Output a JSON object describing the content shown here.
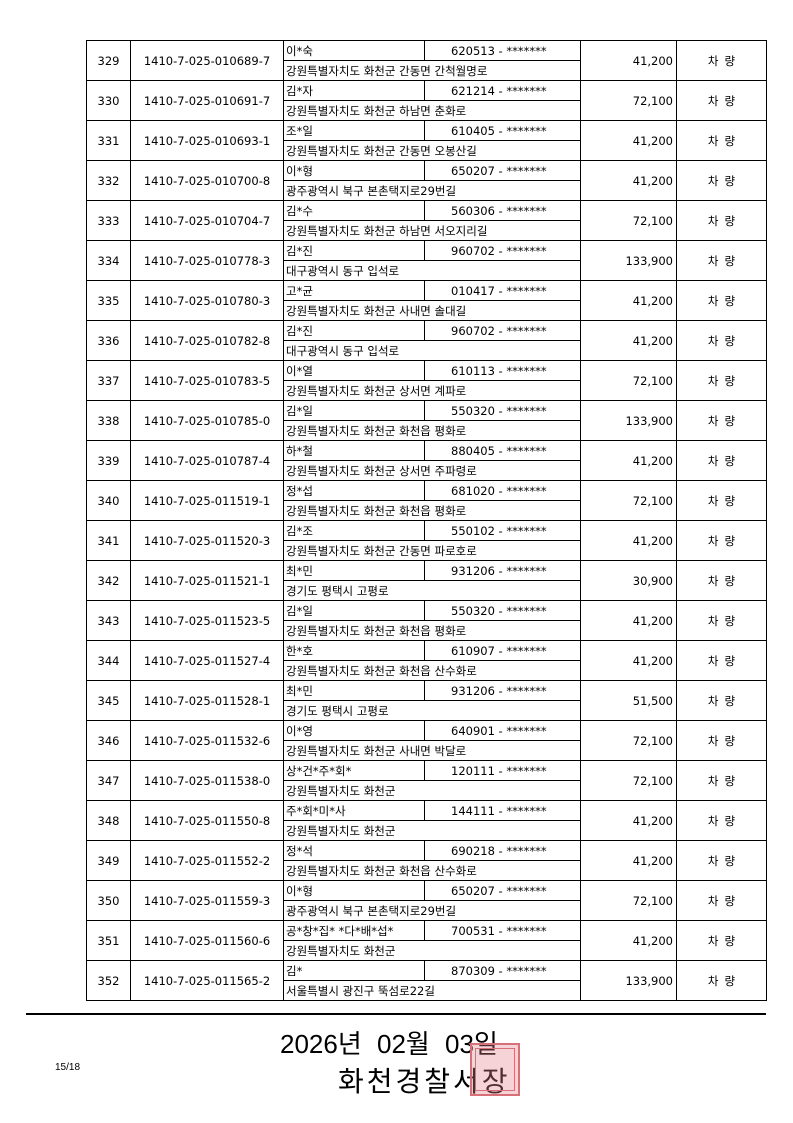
{
  "rows": [
    {
      "no": "329",
      "account": "1410-7-025-010689-7",
      "name": "이*숙",
      "id": "620513 - *******",
      "address": "강원특별자치도 화천군 간동면 간척월명로",
      "amount": "41,200",
      "type": "차량"
    },
    {
      "no": "330",
      "account": "1410-7-025-010691-7",
      "name": "김*자",
      "id": "621214 - *******",
      "address": "강원특별자치도 화천군 하남면 춘화로",
      "amount": "72,100",
      "type": "차량"
    },
    {
      "no": "331",
      "account": "1410-7-025-010693-1",
      "name": "조*일",
      "id": "610405 - *******",
      "address": "강원특별자치도 화천군 간동면 오봉산길",
      "amount": "41,200",
      "type": "차량"
    },
    {
      "no": "332",
      "account": "1410-7-025-010700-8",
      "name": "이*형",
      "id": "650207 - *******",
      "address": "광주광역시 북구 본촌택지로29번길",
      "amount": "41,200",
      "type": "차량"
    },
    {
      "no": "333",
      "account": "1410-7-025-010704-7",
      "name": "김*수",
      "id": "560306 - *******",
      "address": "강원특별자치도 화천군 하남면 서오지리길",
      "amount": "72,100",
      "type": "차량"
    },
    {
      "no": "334",
      "account": "1410-7-025-010778-3",
      "name": "김*진",
      "id": "960702 - *******",
      "address": "대구광역시 동구 입석로",
      "amount": "133,900",
      "type": "차량"
    },
    {
      "no": "335",
      "account": "1410-7-025-010780-3",
      "name": "고*균",
      "id": "010417 - *******",
      "address": "강원특별자치도 화천군 사내면 솔대길",
      "amount": "41,200",
      "type": "차량"
    },
    {
      "no": "336",
      "account": "1410-7-025-010782-8",
      "name": "김*진",
      "id": "960702 - *******",
      "address": "대구광역시 동구 입석로",
      "amount": "41,200",
      "type": "차량"
    },
    {
      "no": "337",
      "account": "1410-7-025-010783-5",
      "name": "이*열",
      "id": "610113 - *******",
      "address": "강원특별자치도 화천군 상서면 계파로",
      "amount": "72,100",
      "type": "차량"
    },
    {
      "no": "338",
      "account": "1410-7-025-010785-0",
      "name": "김*일",
      "id": "550320 - *******",
      "address": "강원특별자치도 화천군 화천읍 평화로",
      "amount": "133,900",
      "type": "차량"
    },
    {
      "no": "339",
      "account": "1410-7-025-010787-4",
      "name": "하*철",
      "id": "880405 - *******",
      "address": "강원특별자치도 화천군 상서면 주파령로",
      "amount": "41,200",
      "type": "차량"
    },
    {
      "no": "340",
      "account": "1410-7-025-011519-1",
      "name": "정*섭",
      "id": "681020 - *******",
      "address": "강원특별자치도 화천군 화천읍 평화로",
      "amount": "72,100",
      "type": "차량"
    },
    {
      "no": "341",
      "account": "1410-7-025-011520-3",
      "name": "김*조",
      "id": "550102 - *******",
      "address": "강원특별자치도 화천군 간동면 파로호로",
      "amount": "41,200",
      "type": "차량"
    },
    {
      "no": "342",
      "account": "1410-7-025-011521-1",
      "name": "최*민",
      "id": "931206 - *******",
      "address": "경기도 평택시 고평로",
      "amount": "30,900",
      "type": "차량"
    },
    {
      "no": "343",
      "account": "1410-7-025-011523-5",
      "name": "김*일",
      "id": "550320 - *******",
      "address": "강원특별자치도 화천군 화천읍 평화로",
      "amount": "41,200",
      "type": "차량"
    },
    {
      "no": "344",
      "account": "1410-7-025-011527-4",
      "name": "한*호",
      "id": "610907 - *******",
      "address": "강원특별자치도 화천군 화천읍 산수화로",
      "amount": "41,200",
      "type": "차량"
    },
    {
      "no": "345",
      "account": "1410-7-025-011528-1",
      "name": "최*민",
      "id": "931206 - *******",
      "address": "경기도 평택시 고평로",
      "amount": "51,500",
      "type": "차량"
    },
    {
      "no": "346",
      "account": "1410-7-025-011532-6",
      "name": "이*영",
      "id": "640901 - *******",
      "address": "강원특별자치도 화천군 사내면 박달로",
      "amount": "72,100",
      "type": "차량"
    },
    {
      "no": "347",
      "account": "1410-7-025-011538-0",
      "name": "상*건*주*회*",
      "id": "120111 - *******",
      "address": "강원특별자치도 화천군",
      "amount": "72,100",
      "type": "차량"
    },
    {
      "no": "348",
      "account": "1410-7-025-011550-8",
      "name": "주*회*미*사",
      "id": "144111 - *******",
      "address": "강원특별자치도 화천군",
      "amount": "41,200",
      "type": "차량"
    },
    {
      "no": "349",
      "account": "1410-7-025-011552-2",
      "name": "정*석",
      "id": "690218 - *******",
      "address": "강원특별자치도 화천군 화천읍 산수화로",
      "amount": "41,200",
      "type": "차량"
    },
    {
      "no": "350",
      "account": "1410-7-025-011559-3",
      "name": "이*형",
      "id": "650207 - *******",
      "address": "광주광역시 북구 본촌택지로29번길",
      "amount": "72,100",
      "type": "차량"
    },
    {
      "no": "351",
      "account": "1410-7-025-011560-6",
      "name": "공*창*집* *다*배*섭*",
      "id": "700531 - *******",
      "address": "강원특별자치도 화천군",
      "amount": "41,200",
      "type": "차량"
    },
    {
      "no": "352",
      "account": "1410-7-025-011565-2",
      "name": "김*",
      "id": "870309 - *******",
      "address": "서울특별시 광진구 뚝섬로22길",
      "amount": "133,900",
      "type": "차량"
    }
  ],
  "footer": {
    "date": "2026년 02월 03일",
    "issuer": "화천경찰서장",
    "page": "15/18",
    "seal_text": "화천경찰서장인"
  },
  "colors": {
    "seal": "#d8707a"
  }
}
